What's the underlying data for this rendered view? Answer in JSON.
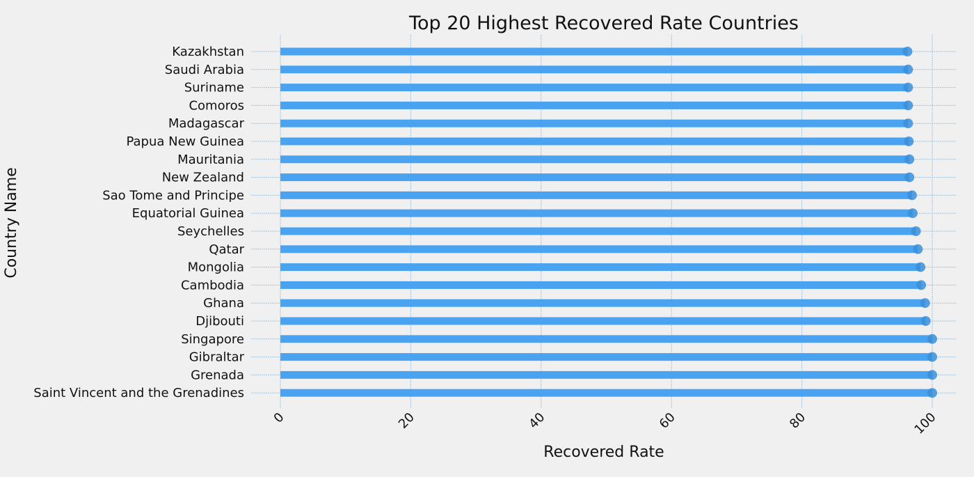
{
  "chart_data": {
    "type": "bar",
    "orientation": "horizontal",
    "title": "Top 20 Highest Recovered Rate Countries",
    "xlabel": "Recovered Rate",
    "ylabel": "Country Name",
    "xlim": [
      0,
      105
    ],
    "xticks": [
      "0",
      "20",
      "40",
      "60",
      "80",
      "100"
    ],
    "grid": true,
    "categories": [
      "Kazakhstan",
      "Saudi Arabia",
      "Suriname",
      "Comoros",
      "Madagascar",
      "Papua New Guinea",
      "Mauritania",
      "New Zealand",
      "Sao Tome and Principe",
      "Equatorial Guinea",
      "Seychelles",
      "Qatar",
      "Mongolia",
      "Cambodia",
      "Ghana",
      "Djibouti",
      "Singapore",
      "Gibraltar",
      "Grenada",
      "Saint Vincent and the Grenadines"
    ],
    "values": [
      96.2,
      96.3,
      96.3,
      96.3,
      96.3,
      96.4,
      96.5,
      96.5,
      96.9,
      97.0,
      97.5,
      97.8,
      98.2,
      98.3,
      98.9,
      99.0,
      100.0,
      100.0,
      100.0,
      100.0
    ],
    "colors": {
      "bar": "#4aa3f0",
      "marker": "#3b8fd9",
      "grid": "#9ec3e0",
      "background": "#f0f0f0"
    }
  }
}
